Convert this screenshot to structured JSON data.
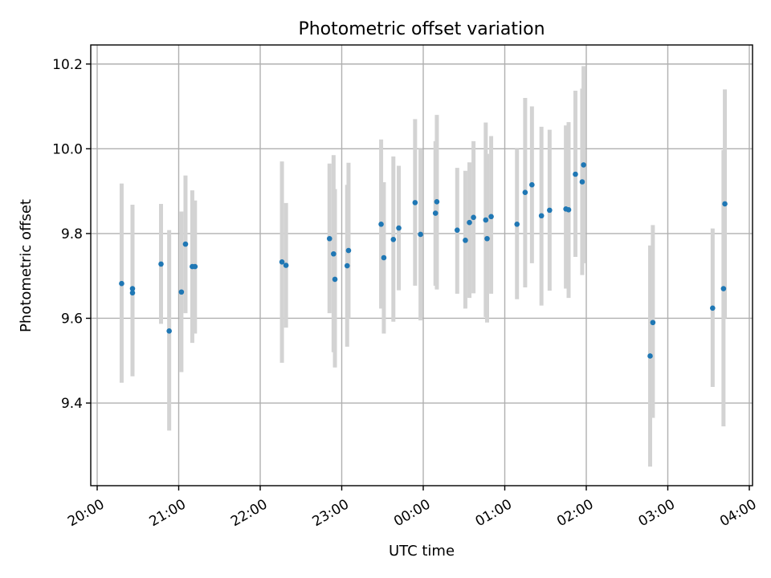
{
  "chart_data": {
    "type": "scatter",
    "title": "Photometric offset variation",
    "xlabel": "UTC time",
    "ylabel": "Photometric offset",
    "x_tick_labels": [
      "20:00",
      "21:00",
      "22:00",
      "23:00",
      "00:00",
      "01:00",
      "02:00",
      "03:00",
      "04:00"
    ],
    "y_tick_labels": [
      "9.4",
      "9.6",
      "9.8",
      "10.0",
      "10.2"
    ],
    "y_ticks": [
      9.4,
      9.6,
      9.8,
      10.0,
      10.2
    ],
    "ylim": [
      9.205,
      10.245
    ],
    "grid": true,
    "colors": {
      "points": "#1f77b4",
      "error_bars": "#d3d3d3"
    },
    "series": [
      {
        "x": [
          "20:18",
          "20:26",
          "20:26",
          "20:47",
          "20:53",
          "21:02",
          "21:05",
          "21:10",
          "21:12",
          "22:16",
          "22:19",
          "22:51",
          "22:54",
          "22:55",
          "23:04",
          "23:05",
          "23:29",
          "23:31",
          "23:38",
          "23:42",
          "23:54",
          "23:58",
          "00:09",
          "00:10",
          "00:25",
          "00:31",
          "00:34",
          "00:37",
          "00:46",
          "00:47",
          "00:50",
          "01:09",
          "01:15",
          "01:20",
          "01:27",
          "01:33",
          "01:45",
          "01:47",
          "01:52",
          "01:57",
          "01:58",
          "02:47",
          "02:49",
          "03:33",
          "03:41",
          "03:42"
        ],
        "y": [
          9.682,
          9.67,
          9.66,
          9.728,
          9.57,
          9.662,
          9.775,
          9.722,
          9.722,
          9.733,
          9.725,
          9.788,
          9.752,
          9.692,
          9.724,
          9.76,
          9.822,
          9.743,
          9.786,
          9.813,
          9.873,
          9.798,
          9.848,
          9.875,
          9.808,
          9.784,
          9.826,
          9.838,
          9.832,
          9.788,
          9.84,
          9.822,
          9.897,
          9.915,
          9.842,
          9.855,
          9.858,
          9.856,
          9.94,
          9.922,
          9.962,
          9.511,
          9.59,
          9.624,
          9.67,
          9.87
        ],
        "y_low": [
          9.448,
          9.475,
          9.463,
          9.587,
          9.335,
          9.473,
          9.612,
          9.542,
          9.564,
          9.495,
          9.578,
          9.612,
          9.52,
          9.484,
          9.533,
          9.6,
          9.623,
          9.564,
          9.592,
          9.666,
          9.677,
          9.595,
          9.677,
          9.668,
          9.658,
          9.623,
          9.648,
          9.659,
          9.603,
          9.59,
          9.658,
          9.645,
          9.673,
          9.73,
          9.63,
          9.665,
          9.67,
          9.648,
          9.745,
          9.702,
          9.73,
          9.25,
          9.365,
          9.438,
          9.345,
          9.6
        ],
        "y_high": [
          9.918,
          9.868,
          9.857,
          9.87,
          9.808,
          9.852,
          9.937,
          9.902,
          9.878,
          9.97,
          9.872,
          9.965,
          9.985,
          9.905,
          9.915,
          9.967,
          10.022,
          9.921,
          9.982,
          9.96,
          10.07,
          10.0,
          10.018,
          10.08,
          9.955,
          9.948,
          9.968,
          10.018,
          10.062,
          9.988,
          10.03,
          10.0,
          10.12,
          10.1,
          10.052,
          10.045,
          10.055,
          10.063,
          10.137,
          10.142,
          10.195,
          9.772,
          9.82,
          9.812,
          9.997,
          10.14
        ]
      }
    ]
  }
}
